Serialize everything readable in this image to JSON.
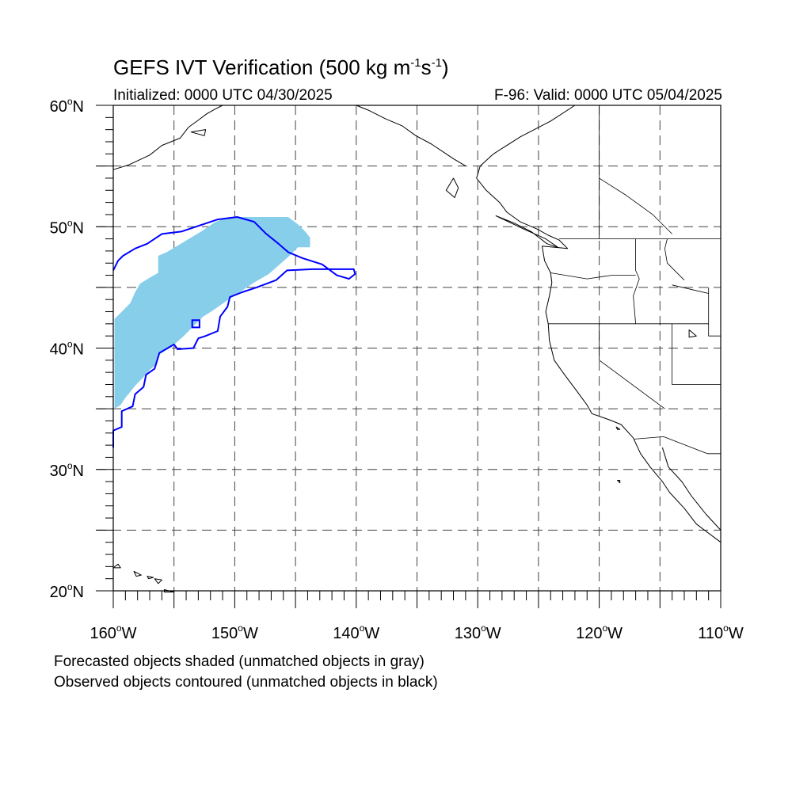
{
  "title": {
    "prefix": "GEFS IVT Verification (500 kg m",
    "exp1": "-1",
    "mid": "s",
    "exp2": "-1",
    "suffix": ")"
  },
  "initialized": "Initialized: 0000 UTC 04/30/2025",
  "valid": "F-96: Valid: 0000 UTC 05/04/2025",
  "notes": [
    "Forecasted objects shaded (unmatched objects in gray)",
    "Observed objects contoured (unmatched objects in black)"
  ],
  "map": {
    "projection": "cylindrical equidistant",
    "lon_range": [
      -160,
      -110
    ],
    "lat_range": [
      20,
      60
    ],
    "grid": "dashed every 5 degrees",
    "lat_labels": [
      {
        "lat": 60,
        "num": "60",
        "hemi": "N"
      },
      {
        "lat": 50,
        "num": "50",
        "hemi": "N"
      },
      {
        "lat": 40,
        "num": "40",
        "hemi": "N"
      },
      {
        "lat": 30,
        "num": "30",
        "hemi": "N"
      },
      {
        "lat": 20,
        "num": "20",
        "hemi": "N"
      }
    ],
    "lon_labels": [
      {
        "lon": -160,
        "num": "160",
        "hemi": "W"
      },
      {
        "lon": -150,
        "num": "150",
        "hemi": "W"
      },
      {
        "lon": -140,
        "num": "140",
        "hemi": "W"
      },
      {
        "lon": -130,
        "num": "130",
        "hemi": "W"
      },
      {
        "lon": -120,
        "num": "120",
        "hemi": "W"
      },
      {
        "lon": -110,
        "num": "110",
        "hemi": "W"
      }
    ],
    "forecast_object_color": "#87ceeb",
    "observed_contour_color": "#0000ff",
    "forecast_object": [
      [
        -159.9,
        35.0
      ],
      [
        -159.9,
        42.4
      ],
      [
        -159.4,
        42.9
      ],
      [
        -158.6,
        43.7
      ],
      [
        -158.2,
        44.6
      ],
      [
        -157.8,
        45.3
      ],
      [
        -157.0,
        45.8
      ],
      [
        -156.3,
        46.2
      ],
      [
        -156.3,
        47.6
      ],
      [
        -155.6,
        47.9
      ],
      [
        -154.6,
        48.5
      ],
      [
        -153.6,
        49.1
      ],
      [
        -152.6,
        49.7
      ],
      [
        -151.6,
        50.4
      ],
      [
        -150.4,
        50.8
      ],
      [
        -149.2,
        50.8
      ],
      [
        -147.6,
        50.8
      ],
      [
        -145.6,
        50.8
      ],
      [
        -144.8,
        50.2
      ],
      [
        -144.2,
        49.6
      ],
      [
        -143.8,
        49.1
      ],
      [
        -143.8,
        48.3
      ],
      [
        -144.8,
        48.3
      ],
      [
        -145.5,
        47.6
      ],
      [
        -146.4,
        46.8
      ],
      [
        -147.2,
        46.1
      ],
      [
        -148.4,
        45.4
      ],
      [
        -149.6,
        44.6
      ],
      [
        -150.8,
        43.8
      ],
      [
        -151.8,
        43.1
      ],
      [
        -152.6,
        42.6
      ],
      [
        -153.4,
        41.8
      ],
      [
        -154.2,
        41.0
      ],
      [
        -155.2,
        40.1
      ],
      [
        -156.2,
        39.5
      ],
      [
        -156.4,
        38.7
      ],
      [
        -157.0,
        38.2
      ],
      [
        -157.6,
        37.5
      ],
      [
        -158.2,
        36.9
      ],
      [
        -158.6,
        36.4
      ],
      [
        -159.0,
        35.9
      ],
      [
        -159.4,
        35.3
      ]
    ],
    "observed_object": [
      [
        -160.0,
        31.8
      ],
      [
        -160.0,
        33.2
      ],
      [
        -159.3,
        33.5
      ],
      [
        -159.3,
        34.8
      ],
      [
        -158.4,
        35.2
      ],
      [
        -158.2,
        36.2
      ],
      [
        -157.5,
        36.8
      ],
      [
        -157.3,
        37.8
      ],
      [
        -156.6,
        38.3
      ],
      [
        -156.2,
        39.6
      ],
      [
        -155.0,
        40.3
      ],
      [
        -154.7,
        39.9
      ],
      [
        -153.4,
        40.0
      ],
      [
        -153.0,
        40.8
      ],
      [
        -152.4,
        41.0
      ],
      [
        -151.4,
        41.4
      ],
      [
        -151.2,
        42.6
      ],
      [
        -150.6,
        43.4
      ],
      [
        -150.4,
        44.2
      ],
      [
        -149.4,
        44.6
      ],
      [
        -148.2,
        45.0
      ],
      [
        -147.4,
        45.3
      ],
      [
        -146.6,
        45.6
      ],
      [
        -145.7,
        46.4
      ],
      [
        -143.6,
        46.5
      ],
      [
        -141.6,
        46.5
      ],
      [
        -140.2,
        46.5
      ],
      [
        -140.1,
        46.1
      ],
      [
        -140.6,
        45.7
      ],
      [
        -141.6,
        46.0
      ],
      [
        -142.8,
        46.9
      ],
      [
        -144.4,
        47.4
      ],
      [
        -145.6,
        47.9
      ],
      [
        -146.4,
        48.6
      ],
      [
        -147.4,
        49.4
      ],
      [
        -148.4,
        50.4
      ],
      [
        -149.8,
        50.8
      ],
      [
        -151.4,
        50.6
      ],
      [
        -153.2,
        50.0
      ],
      [
        -154.4,
        49.6
      ],
      [
        -156.0,
        49.4
      ],
      [
        -157.2,
        48.6
      ],
      [
        -158.2,
        48.2
      ],
      [
        -159.2,
        47.6
      ],
      [
        -159.6,
        47.2
      ],
      [
        -160.0,
        46.4
      ]
    ],
    "observed_small_object": [
      [
        -153.5,
        42.3
      ],
      [
        -152.9,
        42.3
      ],
      [
        -152.9,
        41.7
      ],
      [
        -153.5,
        41.7
      ]
    ],
    "coastline": [
      [
        -122.0,
        60.0
      ],
      [
        -124.0,
        58.7
      ],
      [
        -126.5,
        57.4
      ],
      [
        -128.7,
        56.0
      ],
      [
        -129.8,
        55.0
      ],
      [
        -130.1,
        54.0
      ],
      [
        -129.3,
        53.0
      ],
      [
        -128.2,
        52.0
      ],
      [
        -127.6,
        51.2
      ],
      [
        -126.5,
        50.4
      ],
      [
        -125.1,
        49.8
      ],
      [
        -124.2,
        49.3
      ],
      [
        -123.3,
        48.9
      ],
      [
        -122.6,
        48.2
      ],
      [
        -124.7,
        48.4
      ],
      [
        -124.5,
        47.2
      ],
      [
        -124.0,
        46.2
      ],
      [
        -123.9,
        45.4
      ],
      [
        -124.1,
        44.3
      ],
      [
        -124.4,
        43.0
      ],
      [
        -124.2,
        42.0
      ],
      [
        -124.1,
        40.6
      ],
      [
        -123.7,
        39.0
      ],
      [
        -123.0,
        38.0
      ],
      [
        -122.4,
        37.2
      ],
      [
        -121.8,
        36.4
      ],
      [
        -121.0,
        35.3
      ],
      [
        -120.6,
        34.6
      ],
      [
        -119.2,
        34.1
      ],
      [
        -118.2,
        33.7
      ],
      [
        -117.2,
        32.6
      ],
      [
        -116.6,
        31.3
      ],
      [
        -115.8,
        30.2
      ],
      [
        -114.8,
        29.0
      ],
      [
        -114.2,
        28.1
      ],
      [
        -113.0,
        26.8
      ],
      [
        -112.0,
        25.5
      ],
      [
        -110.0,
        24.0
      ]
    ],
    "coastline_gulf": [
      [
        -114.8,
        31.8
      ],
      [
        -114.3,
        30.2
      ],
      [
        -113.2,
        29.0
      ],
      [
        -112.4,
        27.8
      ],
      [
        -111.2,
        26.3
      ],
      [
        -110.0,
        25.0
      ]
    ],
    "coastline_alaska": [
      [
        -160.0,
        54.7
      ],
      [
        -158.7,
        55.1
      ],
      [
        -157.0,
        55.9
      ],
      [
        -156.0,
        56.7
      ],
      [
        -154.5,
        57.3
      ],
      [
        -153.8,
        58.2
      ],
      [
        -153.1,
        58.7
      ],
      [
        -152.3,
        59.3
      ],
      [
        -151.6,
        59.7
      ],
      [
        -151.0,
        60.0
      ]
    ],
    "coastline_ak_east": [
      [
        -140.0,
        60.0
      ],
      [
        -139.0,
        59.6
      ],
      [
        -137.6,
        58.9
      ],
      [
        -136.2,
        58.3
      ],
      [
        -135.1,
        57.5
      ],
      [
        -133.8,
        56.8
      ],
      [
        -132.0,
        55.6
      ],
      [
        -131.0,
        55.0
      ]
    ],
    "borders": [
      [
        [
          -123.3,
          49.0
        ],
        [
          -110.0,
          49.0
        ]
      ],
      [
        [
          -124.2,
          42.0
        ],
        [
          -111.0,
          42.0
        ]
      ],
      [
        [
          -120.0,
          42.0
        ],
        [
          -120.0,
          39.0
        ],
        [
          -114.6,
          35.0
        ]
      ],
      [
        [
          -117.0,
          49.0
        ],
        [
          -117.0,
          46.4
        ],
        [
          -116.7,
          45.7
        ],
        [
          -117.2,
          44.3
        ],
        [
          -117.0,
          42.0
        ]
      ],
      [
        [
          -124.0,
          46.2
        ],
        [
          -121.0,
          45.7
        ],
        [
          -119.0,
          46.0
        ],
        [
          -117.0,
          46.0
        ]
      ],
      [
        [
          -114.0,
          42.0
        ],
        [
          -114.0,
          37.0
        ],
        [
          -110.0,
          37.0
        ]
      ],
      [
        [
          -111.0,
          45.0
        ],
        [
          -111.0,
          41.0
        ],
        [
          -110.0,
          41.0
        ]
      ],
      [
        [
          -117.1,
          32.5
        ],
        [
          -114.7,
          32.7
        ],
        [
          -111.1,
          31.3
        ],
        [
          -110.0,
          31.3
        ]
      ],
      [
        [
          -114.4,
          49.0
        ],
        [
          -114.6,
          48.2
        ],
        [
          -114.4,
          47.0
        ],
        [
          -113.0,
          45.6
        ]
      ],
      [
        [
          -120.0,
          60.0
        ],
        [
          -120.0,
          49.0
        ]
      ],
      [
        [
          -120.0,
          54.0
        ],
        [
          -117.8,
          52.6
        ],
        [
          -115.6,
          51.0
        ],
        [
          -114.0,
          49.4
        ]
      ],
      [
        [
          -114.0,
          45.2
        ],
        [
          -111.0,
          44.5
        ]
      ]
    ],
    "islands": [
      [
        [
          -132.0,
          54.0
        ],
        [
          -131.6,
          53.2
        ],
        [
          -131.9,
          52.4
        ],
        [
          -132.6,
          53.0
        ],
        [
          -132.0,
          54.0
        ]
      ],
      [
        [
          -128.5,
          50.9
        ],
        [
          -127.0,
          50.3
        ],
        [
          -125.6,
          49.6
        ],
        [
          -124.3,
          48.6
        ],
        [
          -123.4,
          48.3
        ],
        [
          -124.4,
          49.0
        ],
        [
          -126.2,
          49.8
        ],
        [
          -128.5,
          50.9
        ]
      ],
      [
        [
          -160.0,
          21.9
        ],
        [
          -159.6,
          22.2
        ],
        [
          -159.4,
          21.9
        ],
        [
          -160.0,
          21.9
        ]
      ],
      [
        [
          -158.3,
          21.6
        ],
        [
          -157.7,
          21.3
        ],
        [
          -158.1,
          21.2
        ],
        [
          -158.3,
          21.6
        ]
      ],
      [
        [
          -157.2,
          21.2
        ],
        [
          -156.7,
          21.1
        ],
        [
          -157.1,
          21.0
        ],
        [
          -157.2,
          21.2
        ]
      ],
      [
        [
          -156.6,
          21.0
        ],
        [
          -156.0,
          20.9
        ],
        [
          -156.3,
          20.6
        ],
        [
          -156.6,
          21.0
        ]
      ],
      [
        [
          -155.8,
          20.1
        ],
        [
          -155.0,
          19.9
        ],
        [
          -155.8,
          19.9
        ],
        [
          -155.8,
          20.1
        ]
      ],
      [
        [
          -118.6,
          33.5
        ],
        [
          -118.3,
          33.3
        ],
        [
          -118.5,
          33.3
        ],
        [
          -118.6,
          33.5
        ]
      ],
      [
        [
          -118.5,
          29.1
        ],
        [
          -118.3,
          28.9
        ],
        [
          -118.3,
          29.1
        ],
        [
          -118.5,
          29.1
        ]
      ],
      [
        [
          -153.6,
          57.8
        ],
        [
          -152.4,
          58.0
        ],
        [
          -152.5,
          57.5
        ],
        [
          -153.6,
          57.8
        ]
      ],
      [
        [
          -112.6,
          41.5
        ],
        [
          -112.0,
          41.0
        ],
        [
          -112.6,
          40.9
        ],
        [
          -112.6,
          41.5
        ]
      ]
    ]
  }
}
